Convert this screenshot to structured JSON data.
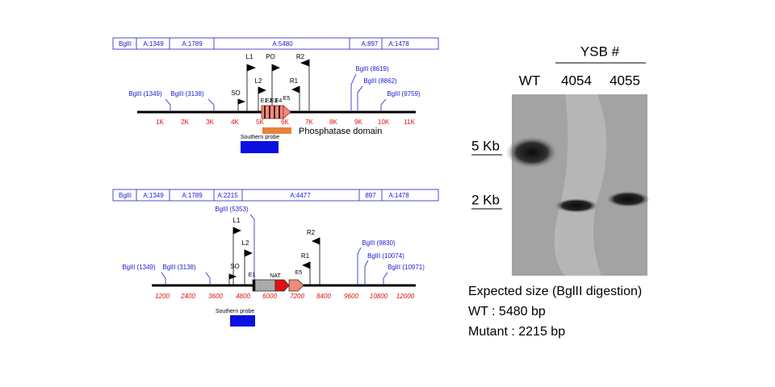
{
  "map1": {
    "fragments": [
      "BglII",
      "A:1349",
      "A:1789",
      "A:5480",
      "A:897",
      "A:1478"
    ],
    "sites": [
      "BglII (1349)",
      "BglII (3138)",
      "BglII (8619)",
      "BglII (8862)",
      "BglII (9759)"
    ],
    "primers": [
      "L1",
      "PO",
      "R2",
      "L2",
      "R1",
      "SO"
    ],
    "exons": [
      "E1",
      "E2",
      "E3",
      "E4",
      "E5"
    ],
    "ticks": [
      "1K",
      "2K",
      "3K",
      "4K",
      "5K",
      "6K",
      "7K",
      "8K",
      "9K",
      "10K",
      "11K"
    ],
    "domain_label": "Phosphatase domain",
    "probe_label": "Southern probe"
  },
  "map2": {
    "fragments": [
      "BglII",
      "A:1349",
      "A:1789",
      "A:2215",
      "A:4477",
      "897",
      "A:1478"
    ],
    "sites": [
      "BglII (5353)",
      "BglII (1349)",
      "BglII (3138)",
      "BglII (9830)",
      "BglII (10074)",
      "BglII (10971)"
    ],
    "primers": [
      "L1",
      "L2",
      "R2",
      "R1",
      "SO"
    ],
    "elements": [
      "E1",
      "NAT",
      "E5"
    ],
    "ticks": [
      "1200",
      "2400",
      "3600",
      "4800",
      "6000",
      "7200",
      "8400",
      "9600",
      "10800",
      "12000"
    ],
    "probe_label": "Southern probe"
  },
  "blot": {
    "group_label": "YSB #",
    "lanes": [
      "WT",
      "4054",
      "4055"
    ],
    "markers": [
      "5 Kb",
      "2 Kb"
    ]
  },
  "caption": [
    "Expected size (BglII digestion)",
    "WT : 5480 bp",
    "Mutant : 2215 bp"
  ]
}
